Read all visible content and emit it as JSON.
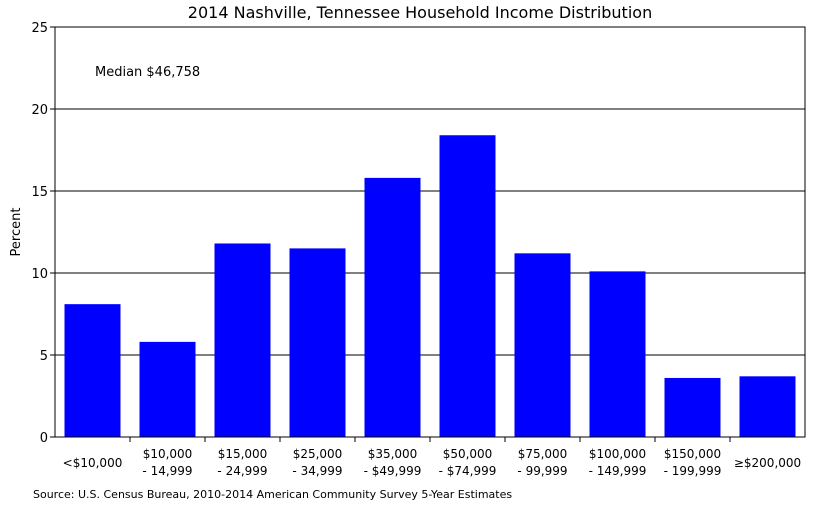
{
  "chart_data": {
    "type": "bar",
    "title": "2014 Nashville, Tennessee Household Income Distribution",
    "ylabel": "Percent",
    "xlabel": "",
    "ylim": [
      0,
      25
    ],
    "yticks": [
      0,
      5,
      10,
      15,
      20,
      25
    ],
    "grid": true,
    "annotation": "Median $46,758",
    "source": "Source: U.S. Census Bureau, 2010-2014 American Community Survey 5-Year Estimates",
    "bar_color": "#0000ff",
    "categories": [
      [
        "<$10,000"
      ],
      [
        "$10,000",
        "- 14,999"
      ],
      [
        "$15,000",
        "- 24,999"
      ],
      [
        "$25,000",
        "- 34,999"
      ],
      [
        "$35,000",
        "- $49,999"
      ],
      [
        "$50,000",
        "- $74,999"
      ],
      [
        "$75,000",
        "- 99,999"
      ],
      [
        "$100,000",
        "- 149,999"
      ],
      [
        "$150,000",
        "- 199,999"
      ],
      [
        "≥$200,000"
      ]
    ],
    "values": [
      8.1,
      5.8,
      11.8,
      11.5,
      15.8,
      18.4,
      11.2,
      10.1,
      3.6,
      3.7
    ]
  }
}
